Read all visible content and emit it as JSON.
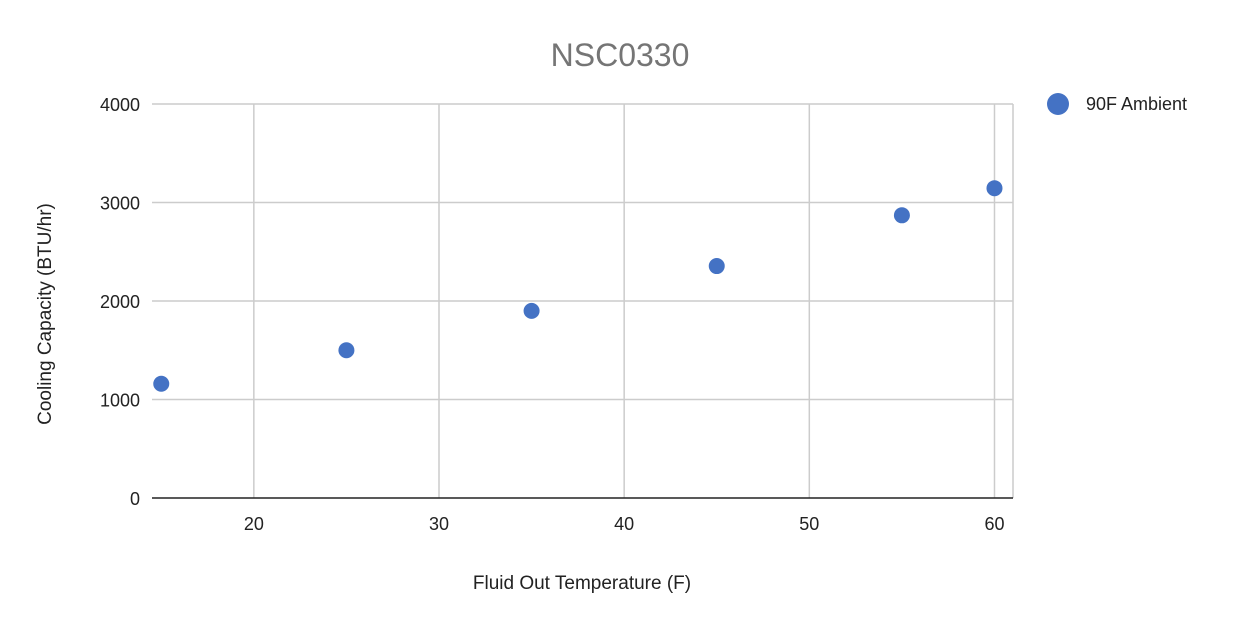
{
  "chart_data": {
    "type": "scatter",
    "title": "NSC0330",
    "xlabel": "Fluid Out Temperature (F)",
    "ylabel": "Cooling Capacity (BTU/hr)",
    "xlim": [
      14.5,
      61
    ],
    "ylim": [
      0,
      4000
    ],
    "x_ticks": [
      20,
      30,
      40,
      50,
      60
    ],
    "y_ticks": [
      0,
      1000,
      2000,
      3000,
      4000
    ],
    "grid": true,
    "legend_position": "right",
    "series": [
      {
        "name": "90F Ambient",
        "color": "#4472c4",
        "x": [
          15,
          25,
          35,
          45,
          55,
          60
        ],
        "y": [
          1160,
          1500,
          1900,
          2355,
          2870,
          3145
        ]
      }
    ]
  }
}
